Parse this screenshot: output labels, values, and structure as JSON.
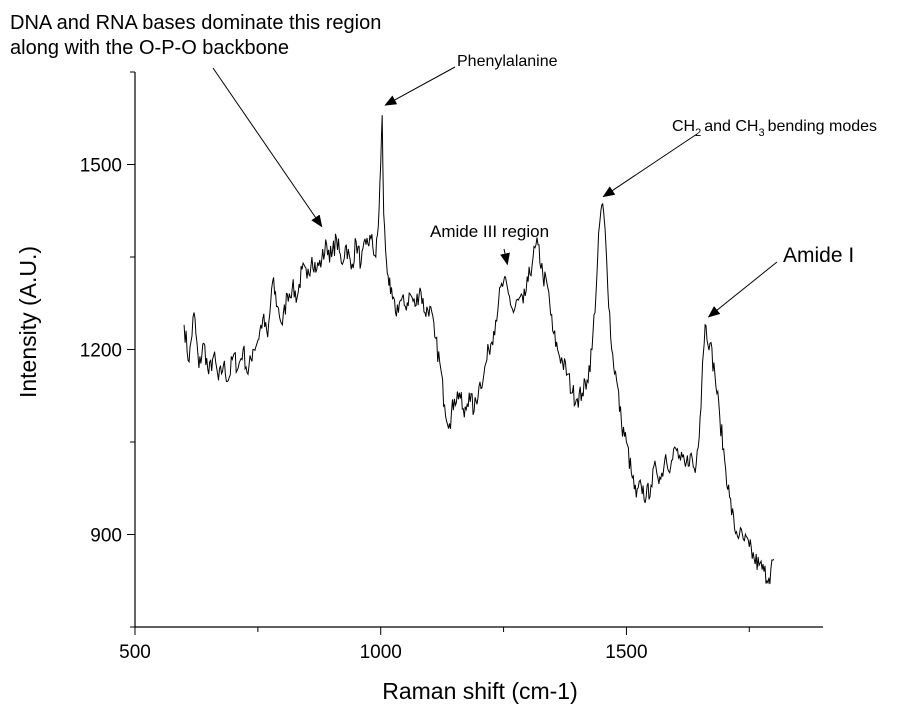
{
  "chart_data": {
    "type": "line",
    "title": "",
    "xlabel": "Raman shift (cm-1)",
    "ylabel": "Intensity (A.U.)",
    "xlim": [
      500,
      1900
    ],
    "ylim": [
      750,
      1650
    ],
    "grid": false,
    "x_ticks": [
      500,
      1000,
      1500
    ],
    "x_tick_labels": [
      "500",
      "1000",
      "1500"
    ],
    "y_ticks": [
      900,
      1200,
      1500
    ],
    "y_tick_labels": [
      "900",
      "1200",
      "1500"
    ],
    "series": [
      {
        "x": [
          600,
          610,
          620,
          630,
          640,
          650,
          660,
          670,
          680,
          690,
          700,
          710,
          720,
          730,
          740,
          750,
          760,
          770,
          780,
          790,
          800,
          810,
          820,
          830,
          840,
          850,
          860,
          870,
          880,
          890,
          900,
          910,
          920,
          930,
          940,
          950,
          960,
          970,
          980,
          990,
          995,
          1000,
          1003,
          1006,
          1010,
          1015,
          1020,
          1030,
          1040,
          1050,
          1060,
          1070,
          1080,
          1090,
          1100,
          1110,
          1120,
          1130,
          1140,
          1150,
          1160,
          1170,
          1180,
          1190,
          1200,
          1210,
          1220,
          1230,
          1240,
          1250,
          1260,
          1270,
          1280,
          1290,
          1300,
          1310,
          1320,
          1330,
          1340,
          1350,
          1360,
          1370,
          1380,
          1390,
          1400,
          1410,
          1420,
          1430,
          1440,
          1445,
          1450,
          1455,
          1460,
          1470,
          1480,
          1490,
          1500,
          1510,
          1520,
          1530,
          1540,
          1550,
          1560,
          1570,
          1580,
          1590,
          1600,
          1610,
          1620,
          1630,
          1640,
          1650,
          1655,
          1660,
          1670,
          1680,
          1690,
          1700,
          1710,
          1720,
          1730,
          1740,
          1750,
          1760,
          1770,
          1780,
          1790,
          1800
        ],
        "y": [
          1240,
          1180,
          1260,
          1170,
          1210,
          1160,
          1190,
          1150,
          1175,
          1150,
          1190,
          1170,
          1200,
          1160,
          1200,
          1215,
          1250,
          1220,
          1310,
          1270,
          1240,
          1290,
          1300,
          1285,
          1330,
          1315,
          1350,
          1330,
          1345,
          1370,
          1350,
          1380,
          1340,
          1370,
          1330,
          1375,
          1340,
          1370,
          1380,
          1350,
          1400,
          1500,
          1580,
          1420,
          1360,
          1320,
          1290,
          1260,
          1280,
          1270,
          1290,
          1270,
          1300,
          1260,
          1270,
          1220,
          1180,
          1110,
          1080,
          1120,
          1130,
          1090,
          1130,
          1100,
          1140,
          1160,
          1200,
          1230,
          1280,
          1310,
          1290,
          1260,
          1280,
          1275,
          1310,
          1350,
          1370,
          1320,
          1300,
          1230,
          1200,
          1180,
          1160,
          1130,
          1120,
          1130,
          1150,
          1200,
          1320,
          1400,
          1435,
          1410,
          1340,
          1200,
          1150,
          1080,
          1050,
          1000,
          960,
          980,
          960,
          980,
          1010,
          990,
          1030,
          1010,
          1040,
          1020,
          1010,
          1030,
          1000,
          1090,
          1180,
          1240,
          1210,
          1160,
          1090,
          1020,
          960,
          910,
          900,
          890,
          880,
          860,
          850,
          840,
          830,
          860
        ]
      }
    ],
    "annotations": [
      {
        "lines": [
          "DNA and RNA bases dominate this region",
          "along with the O-P-O backbone"
        ],
        "target_x": 880,
        "target_y": 1380
      },
      {
        "text": "Phenylalanine",
        "target_x": 1003,
        "target_y": 1580
      },
      {
        "text": "Amide III region",
        "target_x": 1270,
        "target_y": 1330
      },
      {
        "text_ch2": "CH",
        "sub1": "2",
        "text_and": "and CH",
        "sub2": "3",
        "text_rest": "bending modes",
        "target_x": 1445,
        "target_y": 1435
      },
      {
        "text": "Amide I",
        "target_x": 1655,
        "target_y": 1240
      }
    ]
  }
}
